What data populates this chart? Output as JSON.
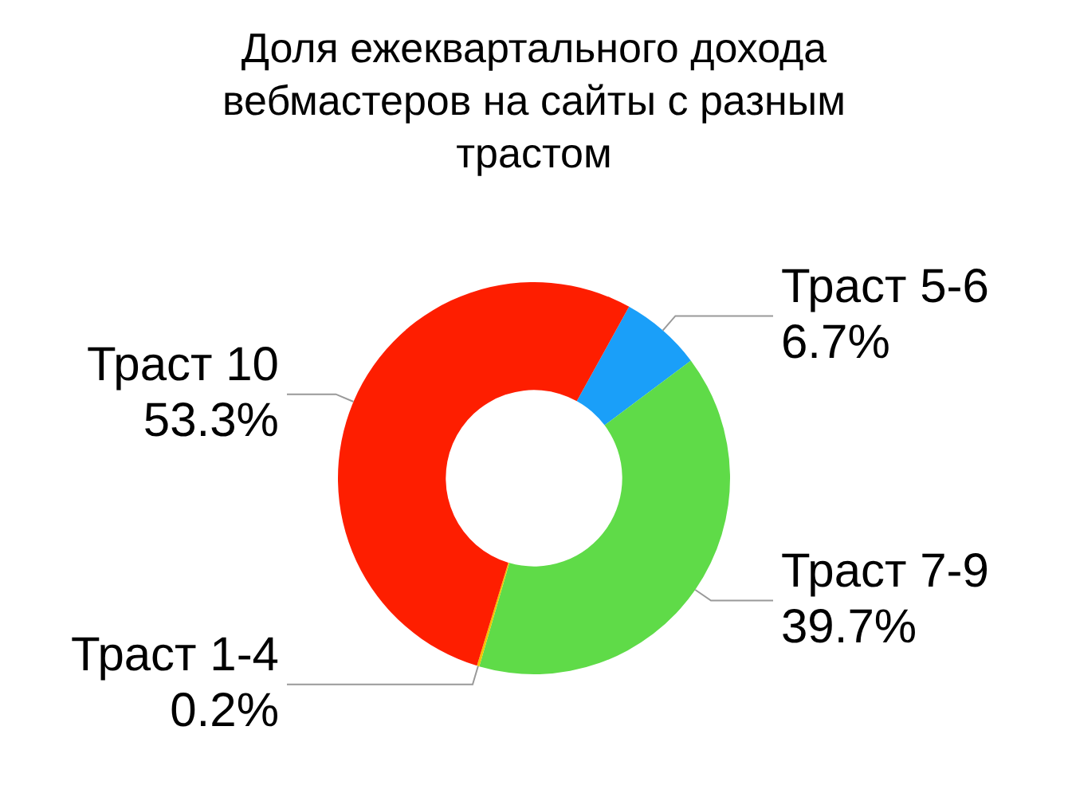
{
  "chart_data": {
    "type": "donut",
    "title": "Доля ежеквартального дохода вебмастеров на сайты с разным трастом",
    "categories": [
      "Траст 5-6",
      "Траст 7-9",
      "Траст 1-4",
      "Траст 10"
    ],
    "values": [
      6.7,
      39.7,
      0.2,
      53.3
    ],
    "colors": [
      "#1a9ff9",
      "#5fdb48",
      "#f2c200",
      "#fe1e00"
    ],
    "value_labels": [
      "6.7%",
      "39.7%",
      "0.2%",
      "53.3%"
    ],
    "legend": false
  }
}
